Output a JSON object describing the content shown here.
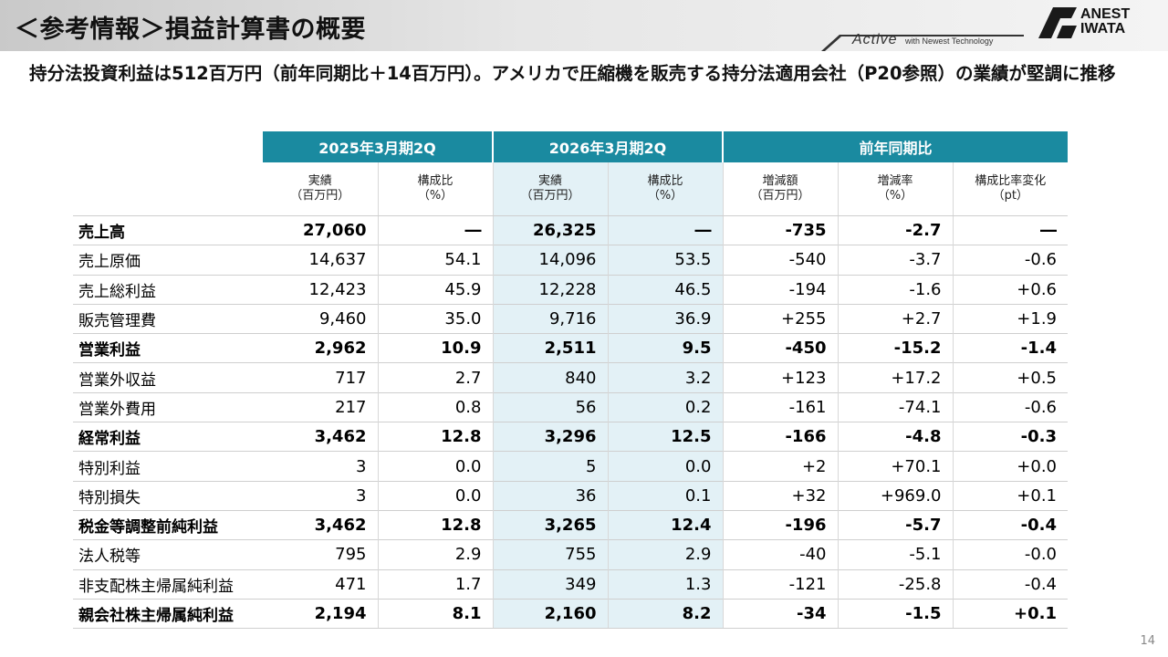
{
  "header": {
    "title": "＜参考情報＞損益計算書の概要",
    "brand_line1": "ANEST",
    "brand_line2": "IWATA",
    "active_logo": "Active",
    "tagline": "with Newest Technology"
  },
  "subtitle": "持分法投資利益は512百万円（前年同期比＋14百万円）。アメリカで圧縮機を販売する持分法適用会社（P20参照）の業績が堅調に推移",
  "table": {
    "groups": [
      "2025年3月期2Q",
      "2026年3月期2Q",
      "前年同期比"
    ],
    "subheaders": [
      [
        "実績",
        "（百万円）"
      ],
      [
        "構成比",
        "（%）"
      ],
      [
        "実績",
        "（百万円）"
      ],
      [
        "構成比",
        "（%）"
      ],
      [
        "増減額",
        "（百万円）"
      ],
      [
        "増減率",
        "（%）"
      ],
      [
        "構成比率変化",
        "（pt）"
      ]
    ],
    "rows": [
      {
        "label": "売上高",
        "bold": true,
        "v": [
          "27,060",
          "―",
          "26,325",
          "―",
          "-735",
          "-2.7",
          "―"
        ]
      },
      {
        "label": "売上原価",
        "bold": false,
        "v": [
          "14,637",
          "54.1",
          "14,096",
          "53.5",
          "-540",
          "-3.7",
          "-0.6"
        ]
      },
      {
        "label": "売上総利益",
        "bold": false,
        "v": [
          "12,423",
          "45.9",
          "12,228",
          "46.5",
          "-194",
          "-1.6",
          "+0.6"
        ]
      },
      {
        "label": "販売管理費",
        "bold": false,
        "v": [
          "9,460",
          "35.0",
          "9,716",
          "36.9",
          "+255",
          "+2.7",
          "+1.9"
        ]
      },
      {
        "label": "営業利益",
        "bold": true,
        "v": [
          "2,962",
          "10.9",
          "2,511",
          "9.5",
          "-450",
          "-15.2",
          "-1.4"
        ]
      },
      {
        "label": "営業外収益",
        "bold": false,
        "v": [
          "717",
          "2.7",
          "840",
          "3.2",
          "+123",
          "+17.2",
          "+0.5"
        ]
      },
      {
        "label": "営業外費用",
        "bold": false,
        "v": [
          "217",
          "0.8",
          "56",
          "0.2",
          "-161",
          "-74.1",
          "-0.6"
        ]
      },
      {
        "label": "経常利益",
        "bold": true,
        "v": [
          "3,462",
          "12.8",
          "3,296",
          "12.5",
          "-166",
          "-4.8",
          "-0.3"
        ]
      },
      {
        "label": "特別利益",
        "bold": false,
        "v": [
          "3",
          "0.0",
          "5",
          "0.0",
          "+2",
          "+70.1",
          "+0.0"
        ]
      },
      {
        "label": "特別損失",
        "bold": false,
        "v": [
          "3",
          "0.0",
          "36",
          "0.1",
          "+32",
          "+969.0",
          "+0.1"
        ]
      },
      {
        "label": "税金等調整前純利益",
        "bold": true,
        "v": [
          "3,462",
          "12.8",
          "3,265",
          "12.4",
          "-196",
          "-5.7",
          "-0.4"
        ]
      },
      {
        "label": "法人税等",
        "bold": false,
        "v": [
          "795",
          "2.9",
          "755",
          "2.9",
          "-40",
          "-5.1",
          "-0.0"
        ]
      },
      {
        "label": "非支配株主帰属純利益",
        "bold": false,
        "v": [
          "471",
          "1.7",
          "349",
          "1.3",
          "-121",
          "-25.8",
          "-0.4"
        ]
      },
      {
        "label": "親会社株主帰属純利益",
        "bold": true,
        "v": [
          "2,194",
          "8.1",
          "2,160",
          "8.2",
          "-34",
          "-1.5",
          "+0.1"
        ]
      }
    ]
  },
  "page_number": "14",
  "colors": {
    "header_teal": "#1a8aa0",
    "highlight_column": "#e3f1f6"
  }
}
